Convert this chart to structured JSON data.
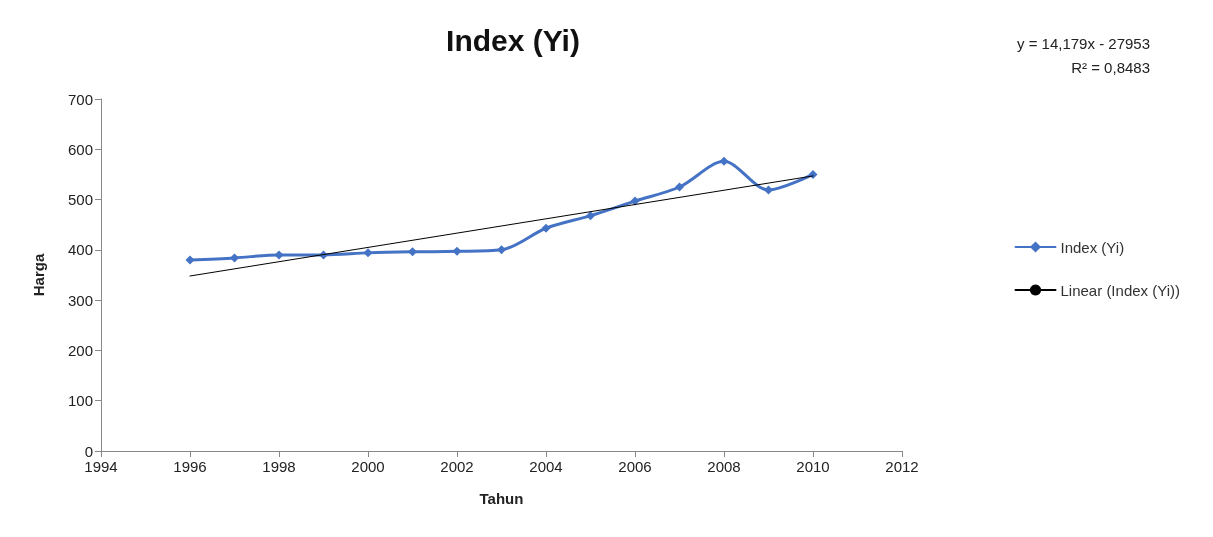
{
  "chart_data": {
    "type": "line",
    "title": "Index (Yi)",
    "xlabel": "Tahun",
    "ylabel": "Harga",
    "x": [
      1996,
      1997,
      1998,
      1999,
      2000,
      2001,
      2002,
      2003,
      2004,
      2005,
      2006,
      2007,
      2008,
      2009,
      2010
    ],
    "series": [
      {
        "name": "Index (Yi)",
        "color": "#4472c4",
        "marker": "diamond",
        "values": [
          380,
          384,
          390,
          390,
          394,
          396,
          397,
          400,
          443,
          468,
          497,
          525,
          576,
          519,
          550
        ]
      },
      {
        "name": "Linear (Index (Yi))",
        "type": "line",
        "color": "#000000",
        "marker": "none",
        "x": [
          1996,
          2010
        ],
        "values": [
          348,
          547
        ]
      }
    ],
    "xlim": [
      1994,
      2012
    ],
    "xticks": [
      1994,
      1996,
      1998,
      2000,
      2002,
      2004,
      2006,
      2008,
      2010,
      2012
    ],
    "ylim": [
      0,
      700
    ],
    "yticks": [
      0,
      100,
      200,
      300,
      400,
      500,
      600,
      700
    ],
    "grid": false,
    "legend": "right",
    "annotations": [
      "y = 14,179x - 27953",
      "R² = 0,8483"
    ]
  }
}
